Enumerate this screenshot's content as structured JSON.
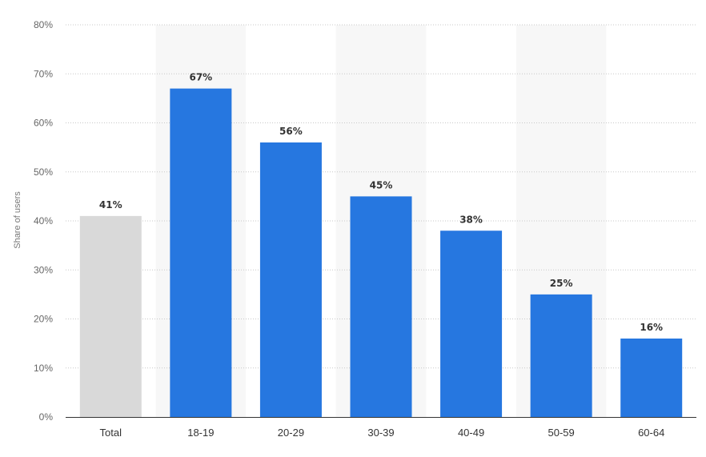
{
  "chart_data": {
    "type": "bar",
    "title": "",
    "xlabel": "",
    "ylabel": "Share of users",
    "ylim": [
      0,
      80
    ],
    "yticks": [
      0,
      10,
      20,
      30,
      40,
      50,
      60,
      70,
      80
    ],
    "ytick_suffix": "%",
    "grid": true,
    "categories": [
      "Total",
      "18-19",
      "20-29",
      "30-39",
      "40-49",
      "50-59",
      "60-64"
    ],
    "values": [
      41,
      67,
      56,
      45,
      38,
      25,
      16
    ],
    "data_labels": [
      "41%",
      "67%",
      "56%",
      "45%",
      "38%",
      "25%",
      "16%"
    ],
    "colors": {
      "total": "#d9d9d9",
      "bar": "#2677e0",
      "band": "#f7f7f7",
      "grid": "#c8c8c8",
      "axis": "#333333"
    }
  }
}
